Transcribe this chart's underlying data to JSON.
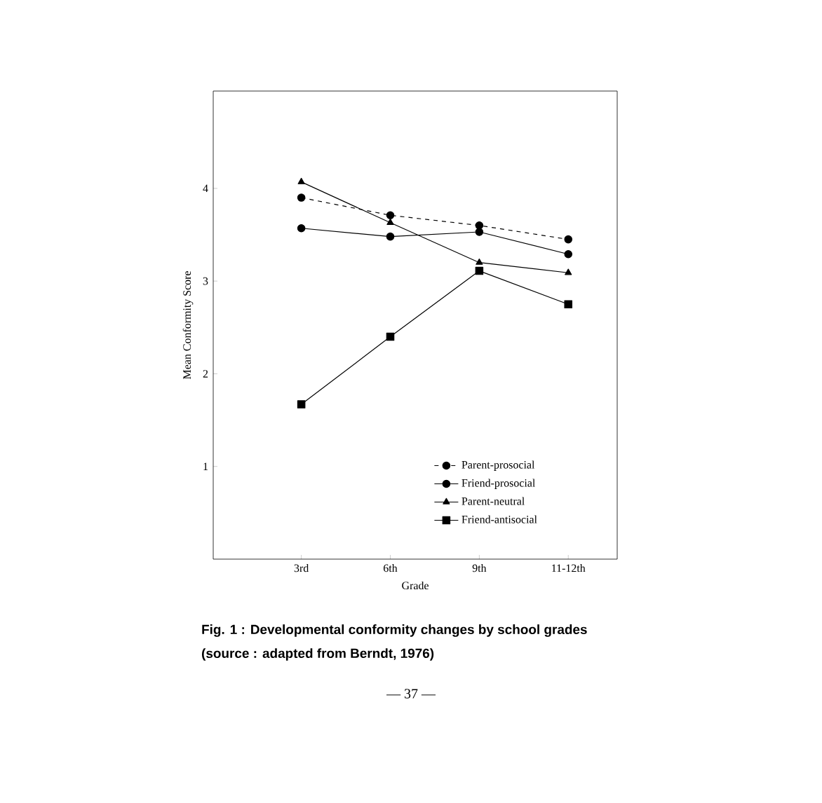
{
  "chart_data": {
    "type": "line",
    "xlabel": "Grade",
    "ylabel": "Mean Conformity Score",
    "categories": [
      "3rd",
      "6th",
      "9th",
      "11-12th"
    ],
    "ylim": [
      0,
      5.05
    ],
    "yticks": [
      1,
      2,
      3,
      4
    ],
    "legend": "bottom right",
    "grid": false,
    "series": [
      {
        "name": "Parent-prosocial",
        "color": "#000000",
        "marker": "circle",
        "line_style": "dashed",
        "values": [
          3.9,
          3.71,
          3.6,
          3.45
        ]
      },
      {
        "name": "Friend-prosocial",
        "color": "#000000",
        "marker": "circle",
        "line_style": "solid",
        "values": [
          3.57,
          3.48,
          3.53,
          3.29
        ]
      },
      {
        "name": "Parent-neutral",
        "color": "#000000",
        "marker": "triangle",
        "line_style": "solid",
        "values": [
          4.07,
          3.63,
          3.2,
          3.09
        ]
      },
      {
        "name": "Friend-antisocial",
        "color": "#000000",
        "marker": "square",
        "line_style": "solid",
        "values": [
          1.67,
          2.4,
          3.11,
          2.75
        ]
      }
    ],
    "annotations": [
      "**Fig. 1 : Developmental conformity changes by school grades**",
      "**(source : adapted from Berndt, 1976)**",
      "— 37 —"
    ]
  }
}
